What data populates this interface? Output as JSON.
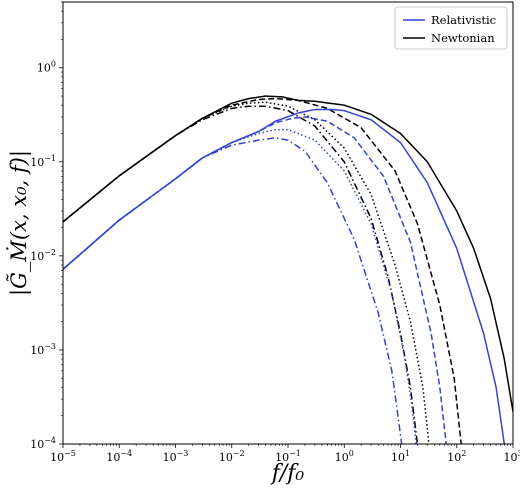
{
  "chart_data": {
    "type": "line",
    "title": "",
    "xlabel": "f/f₀",
    "ylabel": "|G̃_Ṁ(x, x₀, f)|",
    "xscale": "log",
    "yscale": "log",
    "xlim": [
      1e-05,
      1000
    ],
    "ylim": [
      0.0001,
      5
    ],
    "grid": false,
    "legend_position": "top-right",
    "x_ticks": [
      {
        "value": 1e-05,
        "base": "10",
        "exp": "−5"
      },
      {
        "value": 0.0001,
        "base": "10",
        "exp": "−4"
      },
      {
        "value": 0.001,
        "base": "10",
        "exp": "−3"
      },
      {
        "value": 0.01,
        "base": "10",
        "exp": "−2"
      },
      {
        "value": 0.1,
        "base": "10",
        "exp": "−1"
      },
      {
        "value": 1,
        "base": "10",
        "exp": "0"
      },
      {
        "value": 10,
        "base": "10",
        "exp": "1"
      },
      {
        "value": 100,
        "base": "10",
        "exp": "2"
      },
      {
        "value": 1000,
        "base": "10",
        "exp": "3"
      }
    ],
    "y_ticks": [
      {
        "value": 0.0001,
        "base": "10",
        "exp": "−4"
      },
      {
        "value": 0.001,
        "base": "10",
        "exp": "−3"
      },
      {
        "value": 0.01,
        "base": "10",
        "exp": "−2"
      },
      {
        "value": 0.1,
        "base": "10",
        "exp": "−1"
      },
      {
        "value": 1,
        "base": "10",
        "exp": "0"
      }
    ],
    "legend": [
      {
        "label": "Relativistic",
        "color": "#3344cc"
      },
      {
        "label": "Newtonian",
        "color": "#000000"
      }
    ],
    "series": [
      {
        "group": "Newtonian",
        "color": "#000000",
        "style": "solid",
        "x": [
          1e-05,
          0.0001,
          0.001,
          0.003,
          0.01,
          0.02,
          0.04,
          0.08,
          0.15,
          0.3,
          1,
          3,
          10,
          30,
          100,
          200,
          400,
          700,
          1000
        ],
        "y": [
          0.023,
          0.071,
          0.19,
          0.29,
          0.42,
          0.47,
          0.5,
          0.49,
          0.45,
          0.44,
          0.4,
          0.32,
          0.2,
          0.1,
          0.03,
          0.012,
          0.0035,
          0.0008,
          0.00022
        ]
      },
      {
        "group": "Newtonian",
        "color": "#000000",
        "style": "dashed",
        "x": [
          1e-05,
          0.0001,
          0.001,
          0.003,
          0.01,
          0.03,
          0.06,
          0.15,
          0.5,
          2,
          8,
          20,
          50,
          90,
          120
        ],
        "y": [
          0.023,
          0.071,
          0.19,
          0.29,
          0.4,
          0.46,
          0.47,
          0.45,
          0.37,
          0.23,
          0.08,
          0.022,
          0.003,
          0.0005,
          0.0001
        ]
      },
      {
        "group": "Newtonian",
        "color": "#000000",
        "style": "dotted",
        "x": [
          1e-05,
          0.0001,
          0.001,
          0.003,
          0.01,
          0.02,
          0.04,
          0.1,
          0.3,
          1,
          3,
          8,
          15,
          25,
          32
        ],
        "y": [
          0.023,
          0.071,
          0.19,
          0.29,
          0.39,
          0.42,
          0.43,
          0.39,
          0.28,
          0.14,
          0.045,
          0.008,
          0.002,
          0.0004,
          0.0001
        ]
      },
      {
        "group": "Newtonian",
        "color": "#000000",
        "style": "dashdot",
        "x": [
          1e-05,
          0.0001,
          0.001,
          0.003,
          0.01,
          0.02,
          0.04,
          0.1,
          0.3,
          1,
          3,
          6,
          10,
          15,
          20
        ],
        "y": [
          0.023,
          0.071,
          0.19,
          0.28,
          0.37,
          0.39,
          0.39,
          0.35,
          0.24,
          0.1,
          0.025,
          0.006,
          0.0015,
          0.0004,
          0.0001
        ]
      },
      {
        "group": "Relativistic",
        "color": "#3344cc",
        "style": "solid",
        "x": [
          1e-05,
          0.0001,
          0.001,
          0.003,
          0.01,
          0.03,
          0.06,
          0.15,
          0.3,
          0.6,
          1,
          3,
          10,
          30,
          100,
          300,
          500,
          700
        ],
        "y": [
          0.0072,
          0.024,
          0.066,
          0.11,
          0.16,
          0.21,
          0.27,
          0.33,
          0.36,
          0.36,
          0.35,
          0.28,
          0.16,
          0.06,
          0.012,
          0.0015,
          0.0004,
          0.0001
        ]
      },
      {
        "group": "Relativistic",
        "color": "#3344cc",
        "style": "dashed",
        "x": [
          1e-05,
          0.0001,
          0.001,
          0.003,
          0.01,
          0.03,
          0.06,
          0.12,
          0.2,
          0.5,
          1.5,
          5,
          15,
          35,
          50,
          65
        ],
        "y": [
          0.0072,
          0.024,
          0.066,
          0.11,
          0.16,
          0.21,
          0.26,
          0.29,
          0.3,
          0.27,
          0.18,
          0.07,
          0.014,
          0.0015,
          0.0004,
          0.0001
        ]
      },
      {
        "group": "Relativistic",
        "color": "#3344cc",
        "style": "dotted",
        "x": [
          1e-05,
          0.0001,
          0.001,
          0.003,
          0.01,
          0.03,
          0.06,
          0.1,
          0.3,
          1,
          3,
          7,
          12,
          16,
          19
        ],
        "y": [
          0.0072,
          0.024,
          0.066,
          0.11,
          0.16,
          0.2,
          0.22,
          0.22,
          0.17,
          0.08,
          0.022,
          0.004,
          0.0008,
          0.00025,
          0.0001
        ]
      },
      {
        "group": "Relativistic",
        "color": "#3344cc",
        "style": "dashdot",
        "x": [
          1e-05,
          0.0001,
          0.001,
          0.003,
          0.01,
          0.03,
          0.06,
          0.1,
          0.2,
          0.5,
          1.5,
          4,
          7,
          9,
          10.5
        ],
        "y": [
          0.0072,
          0.024,
          0.066,
          0.11,
          0.15,
          0.17,
          0.18,
          0.17,
          0.13,
          0.06,
          0.015,
          0.0025,
          0.0006,
          0.0002,
          0.0001
        ]
      }
    ]
  }
}
